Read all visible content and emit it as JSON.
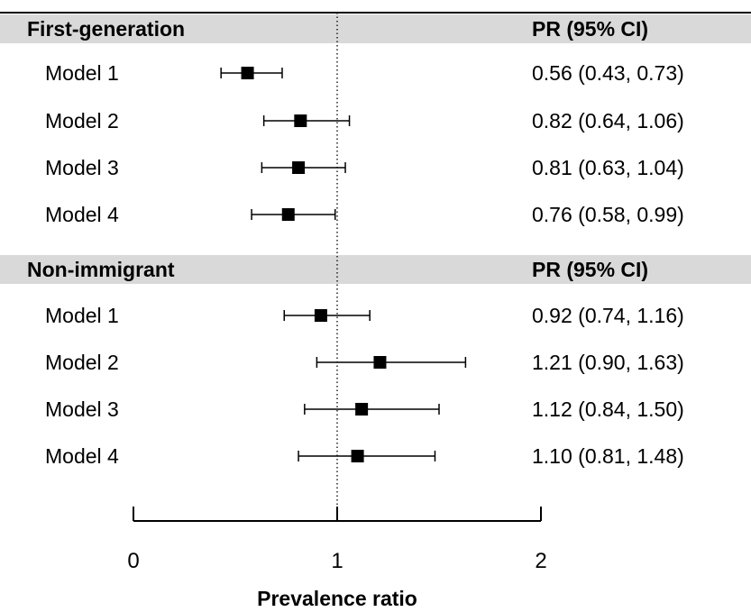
{
  "chart_data": {
    "type": "forest",
    "xlabel": "Prevalence ratio",
    "xlim": [
      0,
      2
    ],
    "x_ticks": [
      "0",
      "1",
      "2"
    ],
    "reference_line": 1,
    "colors": {
      "header_band": "#d9d9d9",
      "marker": "#000000",
      "line": "#000000"
    },
    "groups": [
      {
        "name": "First-generation",
        "estimate_header": "PR (95% CI)",
        "rows": [
          {
            "label": "Model 1",
            "pr": 0.56,
            "lo": 0.43,
            "hi": 0.73,
            "text": "0.56 (0.43, 0.73)"
          },
          {
            "label": "Model 2",
            "pr": 0.82,
            "lo": 0.64,
            "hi": 1.06,
            "text": "0.82 (0.64, 1.06)"
          },
          {
            "label": "Model 3",
            "pr": 0.81,
            "lo": 0.63,
            "hi": 1.04,
            "text": "0.81 (0.63, 1.04)"
          },
          {
            "label": "Model 4",
            "pr": 0.76,
            "lo": 0.58,
            "hi": 0.99,
            "text": "0.76 (0.58, 0.99)"
          }
        ]
      },
      {
        "name": "Non-immigrant",
        "estimate_header": "PR (95% CI)",
        "rows": [
          {
            "label": "Model 1",
            "pr": 0.92,
            "lo": 0.74,
            "hi": 1.16,
            "text": "0.92 (0.74, 1.16)"
          },
          {
            "label": "Model 2",
            "pr": 1.21,
            "lo": 0.9,
            "hi": 1.63,
            "text": "1.21 (0.90, 1.63)"
          },
          {
            "label": "Model 3",
            "pr": 1.12,
            "lo": 0.84,
            "hi": 1.5,
            "text": "1.12 (0.84, 1.50)"
          },
          {
            "label": "Model 4",
            "pr": 1.1,
            "lo": 0.81,
            "hi": 1.48,
            "text": "1.10 (0.81, 1.48)"
          }
        ]
      }
    ]
  }
}
